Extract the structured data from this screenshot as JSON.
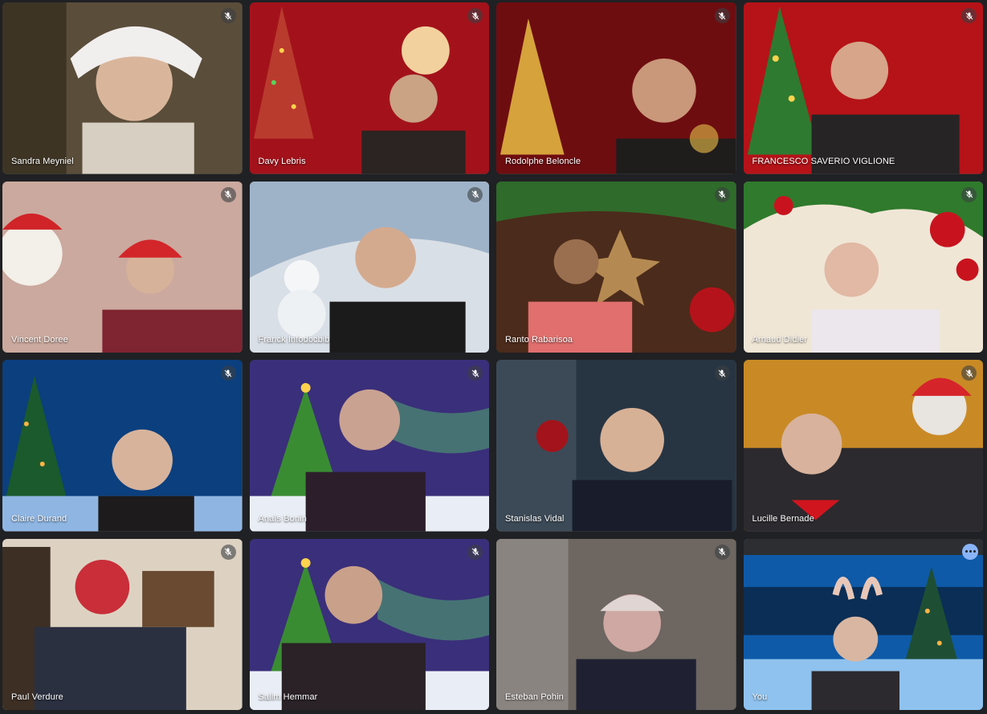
{
  "meeting": {
    "tiles": [
      {
        "name": "Sandra Meyniel",
        "muted": true,
        "scene": "room"
      },
      {
        "name": "Davy Lebris",
        "muted": true,
        "scene": "red-tree"
      },
      {
        "name": "Rodolphe Beloncle",
        "muted": true,
        "scene": "red-gold"
      },
      {
        "name": "FRANCESCO SAVERIO VIGLIONE",
        "muted": true,
        "scene": "red-tree"
      },
      {
        "name": "Vincent Doree",
        "muted": true,
        "scene": "room-pink"
      },
      {
        "name": "Franck Infodocbib",
        "muted": true,
        "scene": "snow"
      },
      {
        "name": "Ranto Rabarisoa",
        "muted": true,
        "scene": "garland"
      },
      {
        "name": "Arnaud Didier",
        "muted": true,
        "scene": "ornaments"
      },
      {
        "name": "Claire Durand",
        "muted": true,
        "scene": "blue-night"
      },
      {
        "name": "Anaïs Bonin",
        "muted": true,
        "scene": "aurora"
      },
      {
        "name": "Stanislas Vidal",
        "muted": true,
        "scene": "village"
      },
      {
        "name": "Lucille Bernade",
        "muted": true,
        "scene": "golden"
      },
      {
        "name": "Paul Verdure",
        "muted": true,
        "scene": "room"
      },
      {
        "name": "Salim Hemmar",
        "muted": true,
        "scene": "aurora"
      },
      {
        "name": "Esteban Pohin",
        "muted": true,
        "scene": "dark-room"
      },
      {
        "name": "You",
        "muted": false,
        "scene": "blue-night",
        "self": true
      }
    ]
  },
  "icons": {
    "mute": "microphone-off-icon",
    "more": "more-options-icon"
  },
  "colors": {
    "background": "#202124",
    "self_outline": "#8ab4f8"
  }
}
